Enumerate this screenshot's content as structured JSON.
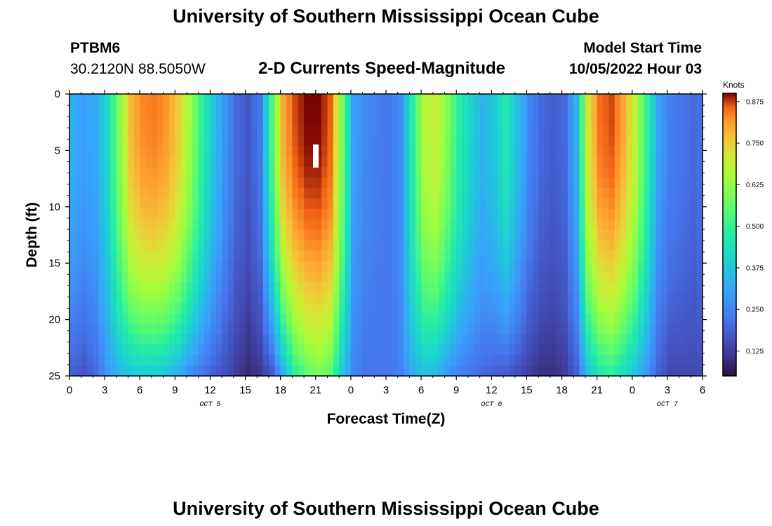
{
  "header": {
    "title": "University of Southern Mississippi Ocean Cube",
    "station_id": "PTBM6",
    "station_coords": "30.2120N  88.5050W",
    "plot_title": "2-D Currents Speed-Magnitude",
    "model_start_label": "Model Start Time",
    "model_start_value": "10/05/2022 Hour 03"
  },
  "footer": {
    "title": "University of Southern Mississippi Ocean Cube"
  },
  "chart_data": {
    "type": "heatmap",
    "title": "2-D Currents Speed-Magnitude",
    "xlabel": "Forecast Time(Z)",
    "ylabel": "Depth (ft)",
    "x_tick_labels": [
      "0",
      "3",
      "6",
      "9",
      "12",
      "15",
      "18",
      "21",
      "0",
      "3",
      "6",
      "9",
      "12",
      "15",
      "18",
      "21",
      "0",
      "3",
      "6"
    ],
    "x_range_hours": [
      0,
      54
    ],
    "x_tick_step_hours": 3,
    "date_labels": [
      {
        "text": "OCT 5",
        "hour": 12
      },
      {
        "text": "OCT 6",
        "hour": 36
      },
      {
        "text": "OCT 7",
        "hour": 51
      }
    ],
    "y_tick_labels": [
      "0",
      "5",
      "10",
      "15",
      "20",
      "25"
    ],
    "y_range_ft": [
      0,
      25
    ],
    "y_tick_step_ft": 5,
    "colorbar": {
      "label": "Knots",
      "tick_labels": [
        "0.875",
        "0.750",
        "0.625",
        "0.500",
        "0.375",
        "0.250",
        "0.125"
      ],
      "min": 0.05,
      "max": 0.9
    },
    "time_columns_hours": [
      0,
      1,
      2,
      3,
      4,
      5,
      6,
      7,
      8,
      9,
      10,
      11,
      12,
      13,
      14,
      15,
      16,
      17,
      18,
      19,
      20,
      21,
      22,
      23,
      24,
      25,
      26,
      27,
      28,
      29,
      30,
      31,
      32,
      33,
      34,
      35,
      36,
      37,
      38,
      39,
      40,
      41,
      42,
      43,
      44,
      45,
      46,
      47,
      48,
      49,
      50,
      51,
      52,
      53,
      54
    ],
    "surface_speed_knots": [
      0.33,
      0.3,
      0.32,
      0.42,
      0.6,
      0.78,
      0.83,
      0.84,
      0.82,
      0.76,
      0.64,
      0.5,
      0.38,
      0.28,
      0.2,
      0.17,
      0.23,
      0.52,
      0.8,
      0.87,
      0.9,
      0.9,
      0.86,
      0.6,
      0.3,
      0.26,
      0.24,
      0.23,
      0.27,
      0.48,
      0.66,
      0.7,
      0.6,
      0.48,
      0.4,
      0.34,
      0.38,
      0.46,
      0.36,
      0.25,
      0.2,
      0.18,
      0.2,
      0.34,
      0.72,
      0.85,
      0.87,
      0.8,
      0.68,
      0.5,
      0.3,
      0.24,
      0.22,
      0.2,
      0.22
    ],
    "bottom_speed_knots": [
      0.18,
      0.16,
      0.2,
      0.28,
      0.34,
      0.36,
      0.38,
      0.38,
      0.36,
      0.32,
      0.26,
      0.22,
      0.18,
      0.15,
      0.12,
      0.09,
      0.11,
      0.16,
      0.32,
      0.48,
      0.55,
      0.58,
      0.55,
      0.38,
      0.25,
      0.22,
      0.22,
      0.22,
      0.25,
      0.32,
      0.36,
      0.34,
      0.28,
      0.24,
      0.22,
      0.2,
      0.18,
      0.17,
      0.15,
      0.12,
      0.1,
      0.1,
      0.12,
      0.18,
      0.36,
      0.45,
      0.48,
      0.42,
      0.36,
      0.28,
      0.18,
      0.14,
      0.14,
      0.14,
      0.16
    ],
    "depth_profile_exponent": 2.4,
    "reading_note": "estimated speed per hour at 0 ft and 25 ft; intermediate depths interpolated"
  }
}
